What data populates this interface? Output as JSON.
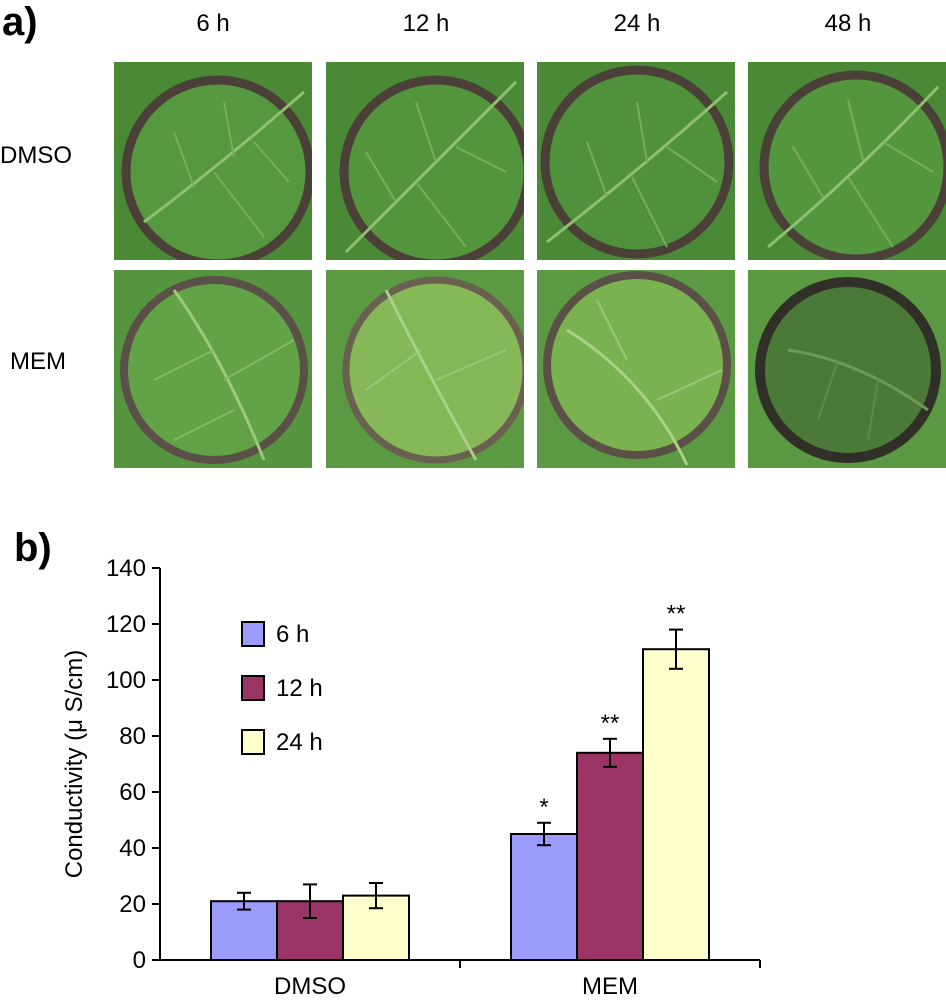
{
  "panel_a": {
    "label": "a)",
    "time_points": [
      "6 h",
      "12 h",
      "24 h",
      "48 h"
    ],
    "rows": [
      {
        "label": "DMSO",
        "tone": "#4e8f38"
      },
      {
        "label": "MEM",
        "tone": "#5f9a41"
      }
    ]
  },
  "chart_data": {
    "type": "bar",
    "panel_label": "b)",
    "title": "",
    "xlabel": "",
    "ylabel": "Conductivity (μ S/cm)",
    "ylim": [
      0,
      140
    ],
    "yticks": [
      0,
      20,
      40,
      60,
      80,
      100,
      120,
      140
    ],
    "categories": [
      "DMSO",
      "MEM"
    ],
    "series": [
      {
        "name": "6 h",
        "color": "#9b9bfc",
        "values": [
          21,
          45
        ],
        "errors": [
          3,
          4
        ],
        "significance": [
          "",
          "*"
        ]
      },
      {
        "name": "12 h",
        "color": "#9a3566",
        "values": [
          21,
          74
        ],
        "errors": [
          6,
          5
        ],
        "significance": [
          "",
          "**"
        ]
      },
      {
        "name": "24 h",
        "color": "#ffffcc",
        "values": [
          23,
          111
        ],
        "errors": [
          4.5,
          7
        ],
        "significance": [
          "",
          "**"
        ]
      }
    ],
    "legend_position": "top-left",
    "grid": false
  }
}
